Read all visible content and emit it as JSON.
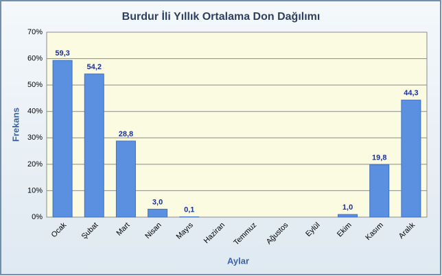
{
  "chart_data": {
    "type": "bar",
    "title": "Burdur İli Yıllık Ortalama Don Dağılımı",
    "x_label": "Aylar",
    "y_label": "Frekans",
    "categories": [
      "Ocak",
      "Şubat",
      "Mart",
      "Nisan",
      "Mayıs",
      "Haziran",
      "Temmuz",
      "Ağustos",
      "Eylül",
      "Ekim",
      "Kasım",
      "Aralık"
    ],
    "values": [
      59.3,
      54.2,
      28.8,
      3.0,
      0.1,
      null,
      null,
      null,
      null,
      1.0,
      19.8,
      44.3
    ],
    "value_labels": [
      "59,3",
      "54,2",
      "28,8",
      "3,0",
      "0,1",
      null,
      null,
      null,
      null,
      "1,0",
      "19,8",
      "44,3"
    ],
    "color": "#5b8fe0",
    "ylim": [
      0,
      70
    ],
    "yticks": [
      {
        "value": 0,
        "label": "0%"
      },
      {
        "value": 10,
        "label": "10%"
      },
      {
        "value": 20,
        "label": "20%"
      },
      {
        "value": 30,
        "label": "30%"
      },
      {
        "value": 40,
        "label": "40%"
      },
      {
        "value": 50,
        "label": "50%"
      },
      {
        "value": 60,
        "label": "60%"
      },
      {
        "value": 70,
        "label": "70%"
      }
    ],
    "grid": true
  }
}
